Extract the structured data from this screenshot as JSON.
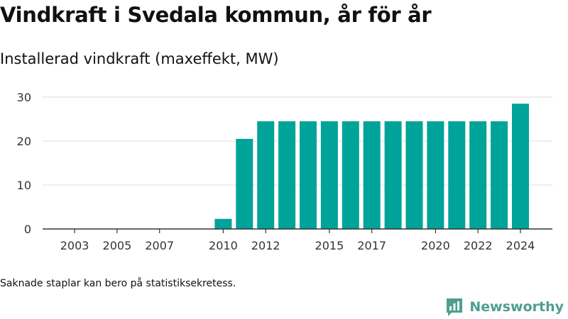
{
  "header": {
    "title": "Vindkraft i Svedala kommun, år för år",
    "subtitle": "Installerad vindkraft (maxeffekt, MW)"
  },
  "footer": {
    "note": "Saknade staplar kan bero på statistiksekretess.",
    "brand": "Newsworthy",
    "brand_icon": "newsworthy-logo-icon"
  },
  "colors": {
    "bar": "#00a39a",
    "grid": "#dddddd",
    "axis": "#333333",
    "brand": "#4f9e92"
  },
  "chart_data": {
    "type": "bar",
    "title": "",
    "xlabel": "",
    "ylabel": "",
    "categories": [
      "2010",
      "2011",
      "2012",
      "2013",
      "2014",
      "2015",
      "2016",
      "2017",
      "2018",
      "2019",
      "2020",
      "2021",
      "2022",
      "2023",
      "2024"
    ],
    "values": [
      2.3,
      20.5,
      24.5,
      24.5,
      24.5,
      24.5,
      24.5,
      24.5,
      24.5,
      24.5,
      24.5,
      24.5,
      24.5,
      24.5,
      28.5
    ],
    "x_range": [
      2002,
      2025
    ],
    "x_ticks": [
      "2003",
      "2005",
      "2007",
      "2010",
      "2012",
      "2015",
      "2017",
      "2020",
      "2022",
      "2024"
    ],
    "y_ticks": [
      0,
      10,
      20,
      30
    ],
    "ylim": [
      0,
      30
    ],
    "grid": true,
    "legend": "none"
  }
}
